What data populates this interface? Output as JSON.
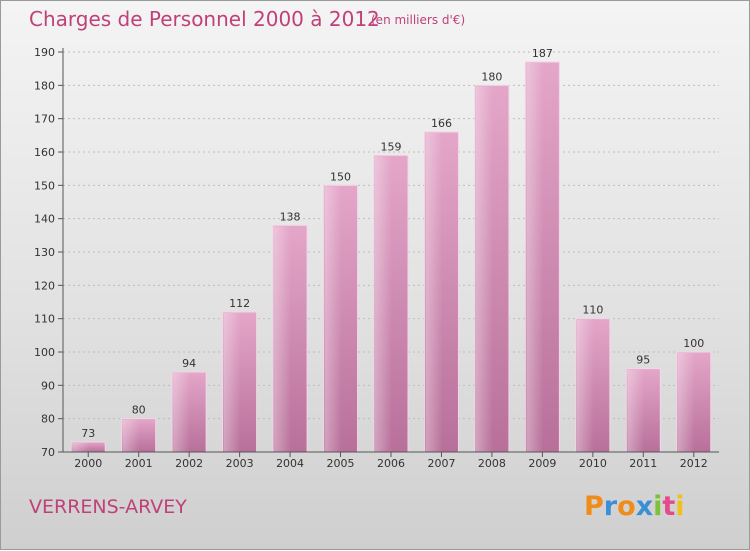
{
  "title": "Charges de Personnel 2000 à 2012",
  "subtitle": "(en milliers d'€)",
  "commune": "VERRENS-ARVEY",
  "logo": {
    "letters": [
      "P",
      "r",
      "o",
      "x",
      "i",
      "t",
      "i"
    ],
    "colors": [
      "#f08c1a",
      "#3a8fd6",
      "#f08c1a",
      "#3a8fd6",
      "#7cc13a",
      "#e54a8a",
      "#f0c020"
    ]
  },
  "colors": {
    "bar": "#d88ab6",
    "text": "#c0407a"
  },
  "chart_data": {
    "type": "bar",
    "title": "Charges de Personnel 2000 à 2012",
    "subtitle": "(en milliers d'€)",
    "categories": [
      "2000",
      "2001",
      "2002",
      "2003",
      "2004",
      "2005",
      "2006",
      "2007",
      "2008",
      "2009",
      "2010",
      "2011",
      "2012"
    ],
    "values": [
      73,
      80,
      94,
      112,
      138,
      150,
      159,
      166,
      180,
      187,
      110,
      95,
      100
    ],
    "ylim": [
      70,
      190
    ],
    "yticks": [
      "70",
      "80",
      "90",
      "100",
      "110",
      "120",
      "130",
      "140",
      "150",
      "160",
      "170",
      "180",
      "190"
    ],
    "xlabel": "",
    "ylabel": "",
    "grid": true,
    "legend": "none"
  }
}
